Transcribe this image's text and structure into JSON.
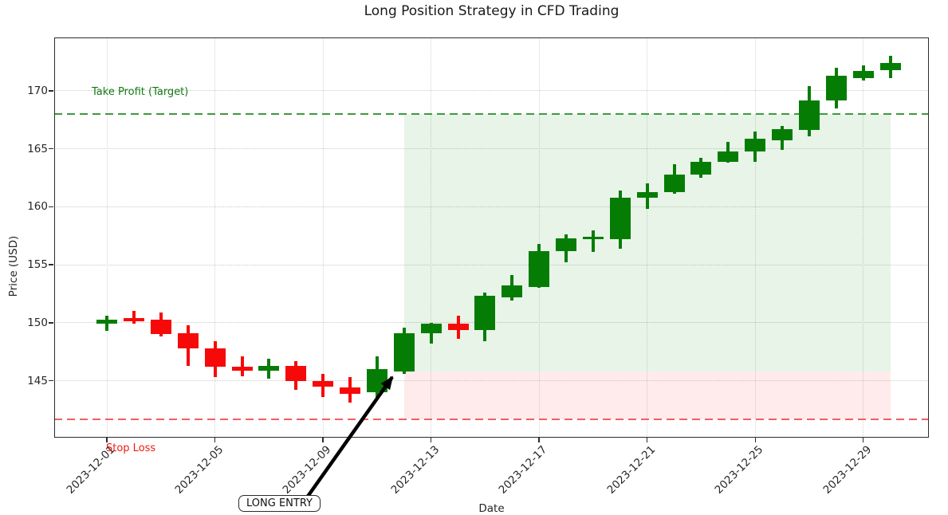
{
  "title": "Long Position Strategy in CFD Trading",
  "axes": {
    "xlabel": "Date",
    "ylabel": "Price (USD)",
    "yticks": [
      145,
      150,
      155,
      160,
      165,
      170
    ],
    "xticks": [
      "2023-12-01",
      "2023-12-05",
      "2023-12-09",
      "2023-12-13",
      "2023-12-17",
      "2023-12-21",
      "2023-12-25",
      "2023-12-29"
    ]
  },
  "labels": {
    "take_profit": "Take Profit (Target)",
    "stop_loss": "Stop Loss",
    "long_entry": "LONG ENTRY"
  },
  "colors": {
    "candle_up": "#057d05",
    "candle_down": "#f60909",
    "tp_line": "#3d9a3d",
    "tp_text": "#137813",
    "sl_line": "#f26060",
    "sl_text": "#ee1b0e",
    "profit_zone": "rgba(0,128,0,0.09)",
    "loss_zone": "rgba(255,0,0,0.08)"
  },
  "chart_data": {
    "type": "candlestick",
    "title": "Long Position Strategy in CFD Trading",
    "xlabel": "Date",
    "ylabel": "Price (USD)",
    "ylim": [
      140.1,
      174.6
    ],
    "grid": true,
    "y_ticks": [
      145,
      150,
      155,
      160,
      165,
      170
    ],
    "x_tick_labels": [
      "2023-12-01",
      "2023-12-05",
      "2023-12-09",
      "2023-12-13",
      "2023-12-17",
      "2023-12-21",
      "2023-12-25",
      "2023-12-29"
    ],
    "x_tick_day_index": [
      0,
      4,
      8,
      12,
      16,
      20,
      24,
      28
    ],
    "dates": [
      "2023-12-01",
      "2023-12-02",
      "2023-12-03",
      "2023-12-04",
      "2023-12-05",
      "2023-12-06",
      "2023-12-07",
      "2023-12-08",
      "2023-12-09",
      "2023-12-10",
      "2023-12-11",
      "2023-12-12",
      "2023-12-13",
      "2023-12-14",
      "2023-12-15",
      "2023-12-16",
      "2023-12-17",
      "2023-12-18",
      "2023-12-19",
      "2023-12-20",
      "2023-12-21",
      "2023-12-22",
      "2023-12-23",
      "2023-12-24",
      "2023-12-25",
      "2023-12-26",
      "2023-12-27",
      "2023-12-28",
      "2023-12-29",
      "2023-12-30"
    ],
    "open": [
      149.9,
      150.4,
      150.3,
      149.1,
      147.8,
      146.2,
      145.9,
      146.3,
      145.0,
      144.4,
      144.0,
      145.8,
      149.1,
      149.9,
      149.4,
      152.2,
      153.1,
      156.2,
      157.2,
      157.2,
      160.8,
      161.3,
      162.8,
      163.9,
      164.8,
      165.7,
      166.6,
      169.2,
      171.1,
      171.8
    ],
    "high": [
      150.6,
      151.0,
      150.9,
      149.8,
      148.4,
      147.1,
      146.9,
      146.7,
      145.6,
      145.3,
      147.1,
      149.6,
      150.0,
      150.6,
      152.6,
      154.1,
      156.8,
      157.6,
      158.0,
      161.4,
      162.0,
      163.7,
      164.2,
      165.6,
      166.5,
      167.0,
      170.4,
      172.0,
      172.2,
      173.0
    ],
    "low": [
      149.3,
      149.9,
      148.8,
      146.3,
      145.3,
      145.4,
      145.2,
      144.2,
      143.6,
      143.1,
      143.6,
      145.6,
      148.2,
      148.6,
      148.4,
      151.9,
      153.0,
      155.2,
      156.1,
      156.4,
      159.8,
      161.1,
      162.5,
      163.8,
      163.9,
      164.9,
      166.1,
      168.5,
      170.9,
      171.1
    ],
    "close": [
      150.3,
      150.1,
      149.0,
      147.8,
      146.2,
      145.9,
      146.3,
      145.0,
      144.5,
      143.9,
      146.0,
      149.1,
      149.9,
      149.4,
      152.3,
      153.2,
      156.2,
      157.3,
      157.4,
      160.8,
      161.3,
      162.8,
      163.9,
      164.8,
      165.9,
      166.7,
      169.2,
      171.3,
      171.7,
      172.4
    ],
    "take_profit_level": 168,
    "stop_loss_level": 141.7,
    "entry_price": 145.8,
    "entry_date": "2023-12-12",
    "zone_start_date": "2023-12-12",
    "zone_end_date": "2023-12-30",
    "annotations": [
      "Take Profit (Target)",
      "Stop Loss",
      "LONG ENTRY"
    ],
    "legend": "none"
  }
}
